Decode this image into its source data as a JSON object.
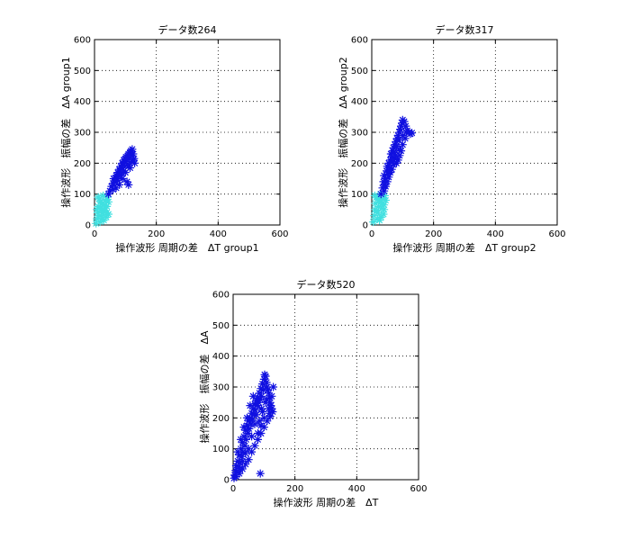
{
  "chart_data": [
    {
      "type": "scatter",
      "title": "データ数264",
      "xlabel": "操作波形 周期の差　ΔT group1",
      "ylabel": "操作波形　振幅の差　ΔA group1",
      "xlim": [
        0,
        600
      ],
      "ylim": [
        0,
        600
      ],
      "xticks": [
        "0",
        "200",
        "400",
        "600"
      ],
      "yticks": [
        "0",
        "100",
        "200",
        "300",
        "400",
        "500",
        "600"
      ],
      "grid": true,
      "marker": "*",
      "series": [
        {
          "color": "#40e0e0",
          "points": [
            [
              5,
              5
            ],
            [
              8,
              20
            ],
            [
              10,
              40
            ],
            [
              12,
              60
            ],
            [
              15,
              85
            ],
            [
              18,
              10
            ],
            [
              20,
              30
            ],
            [
              22,
              50
            ],
            [
              25,
              70
            ],
            [
              28,
              95
            ],
            [
              30,
              15
            ],
            [
              32,
              45
            ],
            [
              35,
              80
            ],
            [
              38,
              25
            ],
            [
              40,
              60
            ],
            [
              42,
              90
            ],
            [
              45,
              35
            ],
            [
              15,
              30
            ],
            [
              25,
              20
            ],
            [
              35,
              55
            ],
            [
              20,
              75
            ],
            [
              30,
              65
            ],
            [
              40,
              40
            ],
            [
              12,
              90
            ],
            [
              45,
              75
            ],
            [
              8,
              50
            ],
            [
              18,
              55
            ],
            [
              28,
              40
            ]
          ]
        },
        {
          "color": "#1010e0",
          "points": [
            [
              45,
              100
            ],
            [
              50,
              110
            ],
            [
              55,
              125
            ],
            [
              60,
              135
            ],
            [
              62,
              150
            ],
            [
              65,
              140
            ],
            [
              70,
              160
            ],
            [
              72,
              150
            ],
            [
              75,
              170
            ],
            [
              78,
              165
            ],
            [
              80,
              180
            ],
            [
              82,
              175
            ],
            [
              85,
              190
            ],
            [
              88,
              185
            ],
            [
              90,
              200
            ],
            [
              92,
              195
            ],
            [
              95,
              210
            ],
            [
              98,
              205
            ],
            [
              100,
              215
            ],
            [
              102,
              220
            ],
            [
              105,
              210
            ],
            [
              108,
              225
            ],
            [
              110,
              230
            ],
            [
              112,
              215
            ],
            [
              115,
              235
            ],
            [
              118,
              240
            ],
            [
              120,
              225
            ],
            [
              122,
              245
            ],
            [
              125,
              230
            ],
            [
              128,
              215
            ],
            [
              130,
              200
            ],
            [
              110,
              190
            ],
            [
              100,
              170
            ],
            [
              90,
              150
            ],
            [
              80,
              130
            ],
            [
              70,
              120
            ],
            [
              60,
              115
            ],
            [
              120,
              205
            ],
            [
              115,
              185
            ],
            [
              105,
              195
            ],
            [
              95,
              175
            ],
            [
              85,
              160
            ],
            [
              75,
              145
            ],
            [
              125,
              210
            ],
            [
              110,
              130
            ],
            [
              105,
              140
            ]
          ]
        }
      ]
    },
    {
      "type": "scatter",
      "title": "データ数317",
      "xlabel": "操作波形 周期の差　ΔT group2",
      "ylabel": "操作波形　振幅の差　ΔA group2",
      "xlim": [
        0,
        600
      ],
      "ylim": [
        0,
        600
      ],
      "xticks": [
        "0",
        "200",
        "400",
        "600"
      ],
      "yticks": [
        "0",
        "100",
        "200",
        "300",
        "400",
        "500",
        "600"
      ],
      "grid": true,
      "marker": "*",
      "series": [
        {
          "color": "#40e0e0",
          "points": [
            [
              5,
              10
            ],
            [
              8,
              30
            ],
            [
              10,
              50
            ],
            [
              12,
              70
            ],
            [
              15,
              90
            ],
            [
              18,
              20
            ],
            [
              20,
              40
            ],
            [
              22,
              60
            ],
            [
              25,
              80
            ],
            [
              28,
              100
            ],
            [
              30,
              25
            ],
            [
              32,
              55
            ],
            [
              35,
              85
            ],
            [
              38,
              35
            ],
            [
              40,
              65
            ],
            [
              42,
              95
            ],
            [
              15,
              45
            ],
            [
              25,
              15
            ],
            [
              35,
              70
            ],
            [
              20,
              85
            ],
            [
              30,
              75
            ],
            [
              40,
              50
            ],
            [
              10,
              95
            ],
            [
              45,
              80
            ]
          ]
        },
        {
          "color": "#1010e0",
          "points": [
            [
              30,
              100
            ],
            [
              35,
              120
            ],
            [
              38,
              140
            ],
            [
              40,
              160
            ],
            [
              42,
              130
            ],
            [
              45,
              150
            ],
            [
              48,
              175
            ],
            [
              50,
              190
            ],
            [
              52,
              165
            ],
            [
              55,
              200
            ],
            [
              58,
              185
            ],
            [
              60,
              210
            ],
            [
              62,
              230
            ],
            [
              65,
              220
            ],
            [
              68,
              240
            ],
            [
              70,
              250
            ],
            [
              72,
              235
            ],
            [
              75,
              260
            ],
            [
              78,
              270
            ],
            [
              80,
              255
            ],
            [
              82,
              280
            ],
            [
              85,
              290
            ],
            [
              88,
              275
            ],
            [
              90,
              300
            ],
            [
              92,
              310
            ],
            [
              95,
              320
            ],
            [
              98,
              330
            ],
            [
              100,
              340
            ],
            [
              105,
              335
            ],
            [
              110,
              320
            ],
            [
              115,
              305
            ],
            [
              120,
              300
            ],
            [
              125,
              295
            ],
            [
              130,
              298
            ],
            [
              108,
              280
            ],
            [
              100,
              260
            ],
            [
              95,
              240
            ],
            [
              90,
              225
            ],
            [
              85,
              210
            ],
            [
              80,
              200
            ],
            [
              75,
              215
            ],
            [
              70,
              195
            ],
            [
              65,
              180
            ],
            [
              60,
              170
            ],
            [
              55,
              155
            ],
            [
              50,
              140
            ],
            [
              45,
              125
            ],
            [
              40,
              110
            ],
            [
              88,
              245
            ],
            [
              78,
              225
            ],
            [
              68,
              205
            ],
            [
              58,
              175
            ],
            [
              100,
              290
            ],
            [
              112,
              300
            ]
          ]
        }
      ]
    },
    {
      "type": "scatter",
      "title": "データ数520",
      "xlabel": "操作波形 周期の差　ΔT",
      "ylabel": "操作波形　振幅の差　ΔA",
      "xlim": [
        0,
        600
      ],
      "ylim": [
        0,
        600
      ],
      "xticks": [
        "0",
        "200",
        "400",
        "600"
      ],
      "yticks": [
        "0",
        "100",
        "200",
        "300",
        "400",
        "500",
        "600"
      ],
      "grid": true,
      "marker": "*",
      "series": [
        {
          "color": "#1010e0",
          "points": [
            [
              3,
              5
            ],
            [
              5,
              15
            ],
            [
              8,
              30
            ],
            [
              10,
              45
            ],
            [
              12,
              25
            ],
            [
              15,
              60
            ],
            [
              18,
              40
            ],
            [
              20,
              80
            ],
            [
              22,
              55
            ],
            [
              25,
              100
            ],
            [
              28,
              75
            ],
            [
              30,
              120
            ],
            [
              32,
              90
            ],
            [
              35,
              140
            ],
            [
              38,
              110
            ],
            [
              40,
              160
            ],
            [
              42,
              130
            ],
            [
              45,
              175
            ],
            [
              48,
              150
            ],
            [
              50,
              190
            ],
            [
              52,
              165
            ],
            [
              55,
              200
            ],
            [
              58,
              180
            ],
            [
              60,
              215
            ],
            [
              62,
              195
            ],
            [
              65,
              230
            ],
            [
              68,
              210
            ],
            [
              70,
              245
            ],
            [
              72,
              225
            ],
            [
              75,
              255
            ],
            [
              78,
              240
            ],
            [
              80,
              265
            ],
            [
              82,
              250
            ],
            [
              85,
              280
            ],
            [
              88,
              260
            ],
            [
              90,
              295
            ],
            [
              92,
              270
            ],
            [
              95,
              310
            ],
            [
              98,
              290
            ],
            [
              100,
              325
            ],
            [
              102,
              340
            ],
            [
              105,
              335
            ],
            [
              108,
              315
            ],
            [
              110,
              300
            ],
            [
              112,
              290
            ],
            [
              115,
              280
            ],
            [
              118,
              265
            ],
            [
              120,
              250
            ],
            [
              122,
              240
            ],
            [
              125,
              230
            ],
            [
              128,
              220
            ],
            [
              130,
              300
            ],
            [
              10,
              10
            ],
            [
              20,
              20
            ],
            [
              30,
              35
            ],
            [
              40,
              50
            ],
            [
              50,
              65
            ],
            [
              60,
              90
            ],
            [
              70,
              110
            ],
            [
              80,
              130
            ],
            [
              90,
              150
            ],
            [
              100,
              170
            ],
            [
              110,
              190
            ],
            [
              120,
              205
            ],
            [
              15,
              90
            ],
            [
              25,
              130
            ],
            [
              35,
              170
            ],
            [
              45,
              200
            ],
            [
              55,
              240
            ],
            [
              65,
              270
            ],
            [
              75,
              210
            ],
            [
              85,
              190
            ],
            [
              95,
              220
            ],
            [
              105,
              250
            ],
            [
              115,
              230
            ],
            [
              60,
              140
            ],
            [
              70,
              180
            ],
            [
              80,
              150
            ],
            [
              90,
              175
            ],
            [
              100,
              200
            ],
            [
              50,
              100
            ],
            [
              40,
              85
            ],
            [
              30,
              60
            ],
            [
              20,
              35
            ],
            [
              88,
              20
            ],
            [
              92,
              230
            ],
            [
              108,
              260
            ],
            [
              118,
              215
            ],
            [
              125,
              270
            ]
          ]
        }
      ]
    }
  ]
}
